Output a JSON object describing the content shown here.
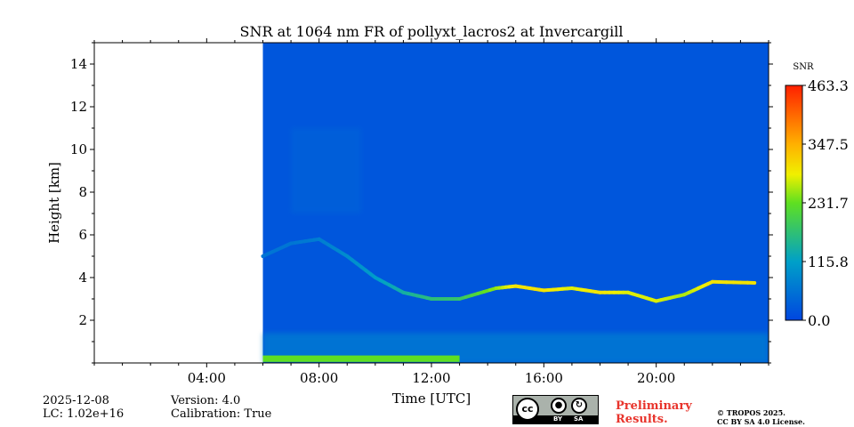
{
  "chart_data": {
    "type": "heatmap",
    "title": "SNR at 1064 nm FR of pollyxt_lacros2 at Invercargill",
    "xlabel": "Time [UTC]",
    "ylabel": "Height [km]",
    "xlim_hours": [
      0,
      24
    ],
    "ylim_km": [
      0,
      15
    ],
    "x_ticks": [
      {
        "value": 4,
        "label": "04:00"
      },
      {
        "value": 8,
        "label": "08:00"
      },
      {
        "value": 12,
        "label": "12:00"
      },
      {
        "value": 16,
        "label": "16:00"
      },
      {
        "value": 20,
        "label": "20:00"
      }
    ],
    "y_ticks": [
      {
        "value": 2,
        "label": "2"
      },
      {
        "value": 4,
        "label": "4"
      },
      {
        "value": 6,
        "label": "6"
      },
      {
        "value": 8,
        "label": "8"
      },
      {
        "value": 10,
        "label": "10"
      },
      {
        "value": 12,
        "label": "12"
      },
      {
        "value": 14,
        "label": "14"
      }
    ],
    "data_start_hour": 6.0,
    "colorbar": {
      "label": "SNR",
      "min": 0.0,
      "max": 463.3,
      "ticks": [
        {
          "value": 0.0,
          "label": "0.0"
        },
        {
          "value": 115.8,
          "label": "115.8"
        },
        {
          "value": 231.7,
          "label": "231.7"
        },
        {
          "value": 347.5,
          "label": "347.5"
        },
        {
          "value": 463.3,
          "label": "463.3"
        }
      ]
    },
    "features": [
      {
        "name": "background",
        "snr": 20
      },
      {
        "name": "boundary-layer",
        "hours": [
          6.0,
          24.0
        ],
        "base_km": 0.0,
        "top_km": 1.4,
        "snr": 90
      },
      {
        "name": "surface-peak",
        "hours": [
          6.0,
          13.0
        ],
        "base_km": 0.05,
        "top_km": 0.35,
        "snr": 230
      },
      {
        "name": "cloud-layer",
        "points": [
          [
            6.0,
            5.0,
            60
          ],
          [
            7.0,
            5.6,
            60
          ],
          [
            8.0,
            5.8,
            70
          ],
          [
            9.0,
            5.0,
            90
          ],
          [
            10.0,
            4.0,
            110
          ],
          [
            11.0,
            3.3,
            140
          ],
          [
            12.0,
            3.0,
            170
          ],
          [
            13.0,
            3.0,
            180
          ],
          [
            14.3,
            3.5,
            250
          ],
          [
            15.0,
            3.6,
            300
          ],
          [
            16.0,
            3.4,
            300
          ],
          [
            17.0,
            3.5,
            280
          ],
          [
            18.0,
            3.3,
            300
          ],
          [
            19.0,
            3.3,
            280
          ],
          [
            20.0,
            2.9,
            280
          ],
          [
            21.0,
            3.2,
            260
          ],
          [
            22.0,
            3.8,
            300
          ],
          [
            23.5,
            3.75,
            300
          ]
        ]
      },
      {
        "name": "thin-cirrus",
        "hours": [
          7.0,
          9.5
        ],
        "base_km": 7.0,
        "top_km": 11.0,
        "snr": 45
      }
    ]
  },
  "footer": {
    "date": "2025-12-08",
    "lc": "LC: 1.02e+16",
    "version": "Version: 4.0",
    "calibration": "Calibration: True",
    "preliminary_line1": "Preliminary",
    "preliminary_line2": "Results.",
    "copyright_line1": "© TROPOS 2025.",
    "copyright_line2": "CC BY SA 4.0 License.",
    "license_badge": {
      "cc": "cc",
      "by": "BY",
      "sa": "SA"
    }
  }
}
